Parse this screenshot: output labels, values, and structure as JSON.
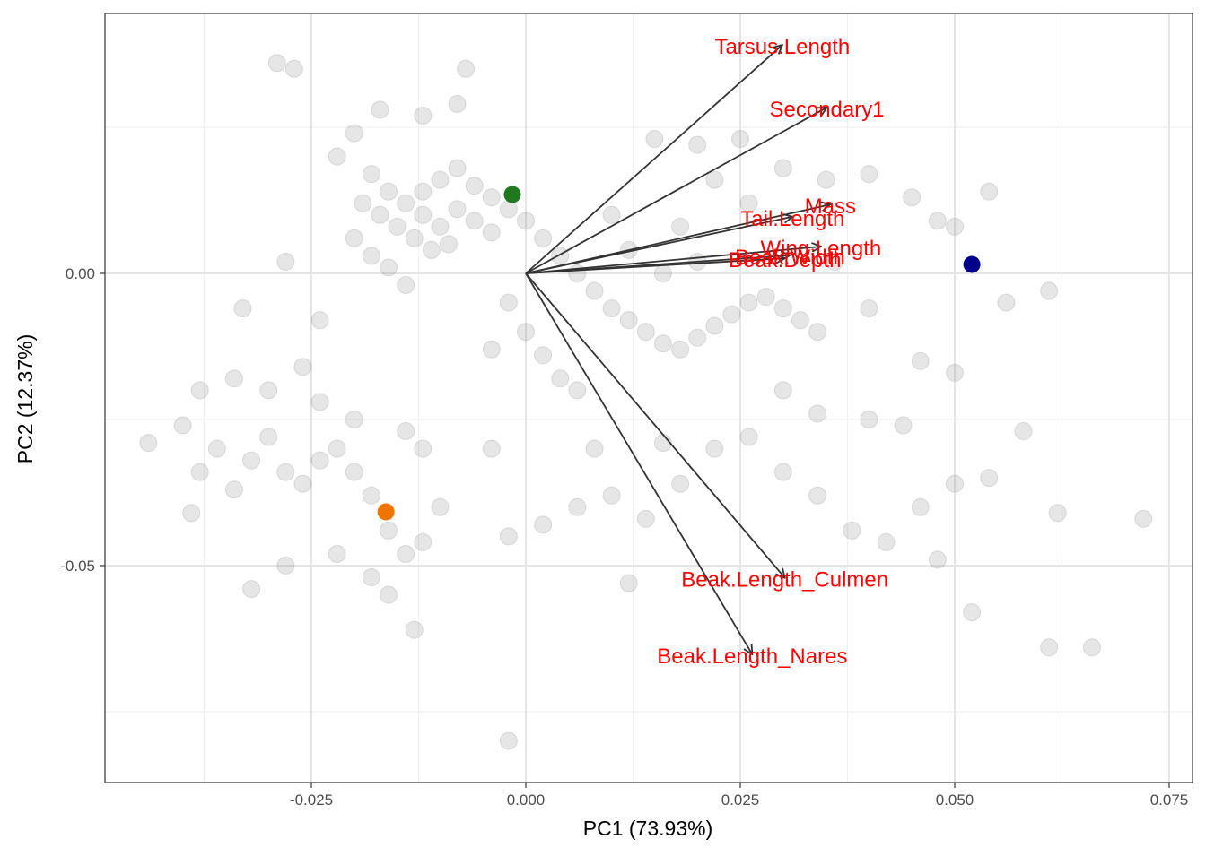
{
  "chart_data": {
    "type": "scatter",
    "x_label": "PC1 (73.93%)",
    "y_label": "PC2 (12.37%)",
    "xlim": [
      -0.04906,
      0.07772
    ],
    "ylim": [
      -0.08712,
      0.04448
    ],
    "xticks": [
      {
        "value": -0.025,
        "label": "-0.025"
      },
      {
        "value": 0,
        "label": "0.000"
      },
      0.025,
      {
        "value": 0.05,
        "label": "0.050"
      },
      0.075
    ],
    "yticks": [
      {
        "value": 0,
        "label": "0.00"
      },
      -0.05
    ],
    "x_minor_ticks": [
      -0.0375,
      -0.0125,
      0.0125,
      0.0375,
      0.0625
    ],
    "y_minor_ticks": [
      0.025,
      -0.025,
      -0.075
    ],
    "grid": true,
    "point_color": "#595959",
    "points": [
      [
        -0.018,
        0.017
      ],
      [
        -0.016,
        0.014
      ],
      [
        -0.014,
        0.012
      ],
      [
        -0.012,
        0.01
      ],
      [
        -0.01,
        0.008
      ],
      [
        -0.008,
        0.011
      ],
      [
        -0.006,
        0.009
      ],
      [
        -0.004,
        0.007
      ],
      [
        -0.013,
        0.006
      ],
      [
        -0.011,
        0.004
      ],
      [
        -0.009,
        0.005
      ],
      [
        -0.015,
        0.008
      ],
      [
        -0.017,
        0.01
      ],
      [
        -0.019,
        0.012
      ],
      [
        -0.02,
        0.006
      ],
      [
        -0.018,
        0.003
      ],
      [
        -0.016,
        0.001
      ],
      [
        -0.014,
        -0.002
      ],
      [
        -0.012,
        0.014
      ],
      [
        -0.01,
        0.016
      ],
      [
        -0.008,
        0.018
      ],
      [
        -0.006,
        0.015
      ],
      [
        -0.004,
        0.013
      ],
      [
        -0.002,
        0.011
      ],
      [
        0.0,
        0.009
      ],
      [
        0.002,
        0.006
      ],
      [
        0.004,
        0.003
      ],
      [
        0.006,
        0.0
      ],
      [
        0.008,
        -0.003
      ],
      [
        0.01,
        -0.006
      ],
      [
        0.012,
        -0.008
      ],
      [
        0.014,
        -0.01
      ],
      [
        0.016,
        -0.012
      ],
      [
        0.018,
        -0.013
      ],
      [
        0.02,
        -0.011
      ],
      [
        0.022,
        -0.009
      ],
      [
        0.024,
        -0.007
      ],
      [
        0.026,
        -0.005
      ],
      [
        0.028,
        -0.004
      ],
      [
        0.03,
        -0.006
      ],
      [
        0.032,
        -0.008
      ],
      [
        0.034,
        -0.01
      ],
      [
        -0.002,
        -0.005
      ],
      [
        0.0,
        -0.01
      ],
      [
        0.002,
        -0.014
      ],
      [
        -0.004,
        -0.013
      ],
      [
        0.004,
        -0.018
      ],
      [
        0.006,
        -0.02
      ],
      [
        -0.022,
        0.02
      ],
      [
        -0.02,
        0.024
      ],
      [
        -0.017,
        0.028
      ],
      [
        -0.012,
        0.027
      ],
      [
        -0.008,
        0.029
      ],
      [
        -0.029,
        0.036
      ],
      [
        -0.027,
        0.035
      ],
      [
        -0.007,
        0.035
      ],
      [
        0.015,
        0.023
      ],
      [
        0.02,
        0.022
      ],
      [
        0.025,
        0.023
      ],
      [
        0.03,
        0.018
      ],
      [
        0.035,
        0.016
      ],
      [
        0.04,
        0.017
      ],
      [
        0.045,
        0.013
      ],
      [
        0.048,
        0.009
      ],
      [
        0.05,
        0.008
      ],
      [
        0.054,
        0.014
      ],
      [
        0.036,
        0.002
      ],
      [
        0.04,
        -0.006
      ],
      [
        0.046,
        -0.015
      ],
      [
        0.05,
        -0.017
      ],
      [
        0.056,
        -0.005
      ],
      [
        0.061,
        -0.003
      ],
      [
        0.022,
        0.016
      ],
      [
        0.026,
        0.012
      ],
      [
        0.012,
        0.004
      ],
      [
        0.016,
        0.0
      ],
      [
        0.02,
        0.002
      ],
      [
        0.018,
        0.008
      ],
      [
        0.01,
        0.01
      ],
      [
        -0.028,
        0.002
      ],
      [
        -0.033,
        -0.006
      ],
      [
        -0.044,
        -0.029
      ],
      [
        -0.04,
        -0.026
      ],
      [
        -0.038,
        -0.034
      ],
      [
        -0.036,
        -0.03
      ],
      [
        -0.034,
        -0.037
      ],
      [
        -0.032,
        -0.032
      ],
      [
        -0.03,
        -0.028
      ],
      [
        -0.028,
        -0.034
      ],
      [
        -0.026,
        -0.036
      ],
      [
        -0.024,
        -0.032
      ],
      [
        -0.022,
        -0.03
      ],
      [
        -0.02,
        -0.034
      ],
      [
        -0.018,
        -0.038
      ],
      [
        -0.016,
        -0.044
      ],
      [
        -0.014,
        -0.048
      ],
      [
        -0.012,
        -0.046
      ],
      [
        -0.01,
        -0.04
      ],
      [
        -0.012,
        -0.03
      ],
      [
        -0.014,
        -0.027
      ],
      [
        -0.02,
        -0.025
      ],
      [
        -0.024,
        -0.022
      ],
      [
        -0.03,
        -0.02
      ],
      [
        -0.034,
        -0.018
      ],
      [
        -0.038,
        -0.02
      ],
      [
        -0.032,
        -0.054
      ],
      [
        -0.028,
        -0.05
      ],
      [
        -0.022,
        -0.048
      ],
      [
        -0.018,
        -0.052
      ],
      [
        -0.016,
        -0.055
      ],
      [
        -0.013,
        -0.061
      ],
      [
        -0.039,
        -0.041
      ],
      [
        -0.026,
        -0.016
      ],
      [
        -0.024,
        -0.008
      ],
      [
        -0.002,
        -0.045
      ],
      [
        0.002,
        -0.043
      ],
      [
        0.006,
        -0.04
      ],
      [
        0.01,
        -0.038
      ],
      [
        0.014,
        -0.042
      ],
      [
        0.018,
        -0.036
      ],
      [
        0.022,
        -0.03
      ],
      [
        0.026,
        -0.028
      ],
      [
        0.03,
        -0.034
      ],
      [
        0.034,
        -0.038
      ],
      [
        0.038,
        -0.044
      ],
      [
        0.042,
        -0.046
      ],
      [
        0.046,
        -0.04
      ],
      [
        0.05,
        -0.036
      ],
      [
        0.054,
        -0.035
      ],
      [
        0.058,
        -0.027
      ],
      [
        0.062,
        -0.041
      ],
      [
        0.066,
        -0.064
      ],
      [
        0.072,
        -0.042
      ],
      [
        0.061,
        -0.064
      ],
      [
        0.052,
        -0.058
      ],
      [
        0.048,
        -0.049
      ],
      [
        0.03,
        -0.02
      ],
      [
        0.034,
        -0.024
      ],
      [
        0.04,
        -0.025
      ],
      [
        0.044,
        -0.026
      ],
      [
        0.008,
        -0.03
      ],
      [
        0.016,
        -0.029
      ],
      [
        -0.002,
        -0.08
      ],
      [
        -0.004,
        -0.03
      ],
      [
        0.012,
        -0.053
      ]
    ],
    "highlights": [
      {
        "x": -0.00157,
        "y": 0.0135,
        "color": "#1f7a1f"
      },
      {
        "x": 0.052,
        "y": 0.00153,
        "color": "#00008b"
      },
      {
        "x": -0.0163,
        "y": -0.0408,
        "color": "#ee7600"
      }
    ],
    "arrow_color": "#333333",
    "label_color": "#ff0000",
    "loadings": [
      {
        "name": "Tarsus.Length",
        "x": 0.0299,
        "y": 0.0391
      },
      {
        "name": "Secondary1",
        "x": 0.0351,
        "y": 0.0284
      },
      {
        "name": "Mass",
        "x": 0.0355,
        "y": 0.0118
      },
      {
        "name": "Tail.Length",
        "x": 0.0311,
        "y": 0.0097
      },
      {
        "name": "Wing.Length",
        "x": 0.0344,
        "y": 0.0046
      },
      {
        "name": "Beak.Width",
        "x": 0.0308,
        "y": 0.0031
      },
      {
        "name": "Beak.Depth",
        "x": 0.0302,
        "y": 0.0026
      },
      {
        "name": "Beak.Length_Culmen",
        "x": 0.0302,
        "y": -0.0521
      },
      {
        "name": "Beak.Length_Nares",
        "x": 0.0264,
        "y": -0.0652
      }
    ]
  }
}
